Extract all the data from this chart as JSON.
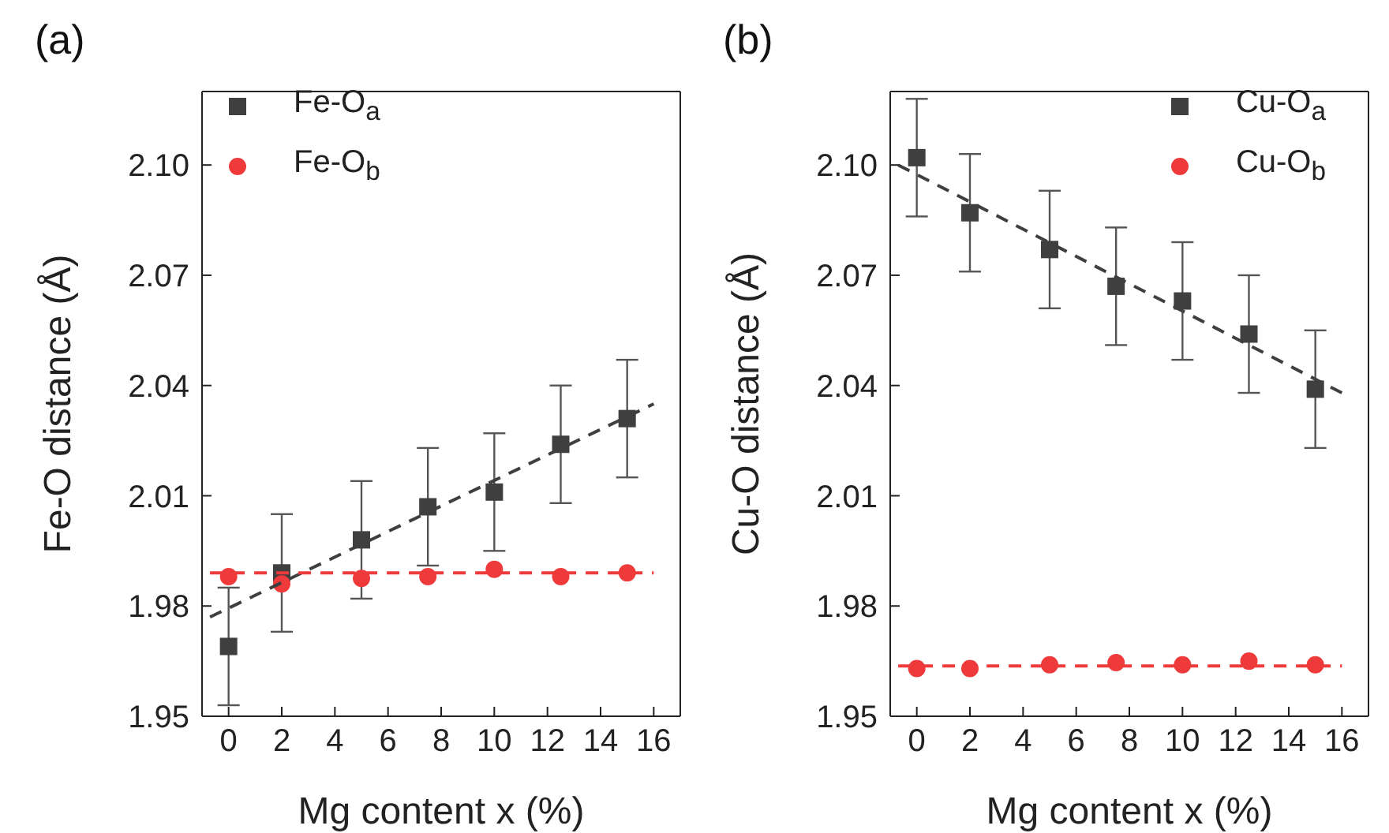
{
  "chart_data": [
    {
      "type": "scatter",
      "title": "(a)",
      "xlabel": "Mg content x (%)",
      "ylabel": "Fe-O distance (Å)",
      "xlim": [
        -1,
        17
      ],
      "xticks": [
        0,
        2,
        4,
        6,
        8,
        10,
        12,
        14,
        16
      ],
      "ylim": [
        1.95,
        2.12
      ],
      "yticks": [
        1.95,
        1.98,
        2.01,
        2.04,
        2.07,
        {
          "value": 2.1,
          "label": "2.10"
        }
      ],
      "grid": false,
      "legend": "top left",
      "series": [
        {
          "name": "Fe-O$_{a}$",
          "type": "scatter",
          "marker": "square",
          "color": "#3f3f3f",
          "x": [
            0,
            2,
            5,
            7.5,
            10,
            12.5,
            15
          ],
          "values": [
            1.969,
            1.989,
            1.998,
            2.007,
            2.011,
            2.024,
            2.031
          ],
          "errors": [
            0.016,
            0.016,
            0.016,
            0.016,
            0.016,
            0.016,
            0.016
          ]
        },
        {
          "name": "Fe-O$_{b}$",
          "type": "scatter",
          "marker": "circle",
          "color": "#ee3a3a",
          "x": [
            0,
            2,
            5,
            7.5,
            10,
            12.5,
            15
          ],
          "values": [
            1.988,
            1.986,
            1.9875,
            1.988,
            1.99,
            1.988,
            1.989
          ]
        },
        {
          "type": "line",
          "marker": "none",
          "line_style": "dashed",
          "color": "#3f3f3f",
          "x": [
            -0.7,
            16
          ],
          "values": [
            1.977,
            2.035
          ]
        },
        {
          "type": "line",
          "marker": "none",
          "line_style": "dashed",
          "color": "#ee3a3a",
          "x": [
            -0.7,
            16
          ],
          "values": [
            1.989,
            1.989
          ]
        }
      ]
    },
    {
      "type": "scatter",
      "title": "(b)",
      "xlabel": "Mg content x (%)",
      "ylabel": "Cu-O distance (Å)",
      "xlim": [
        -1,
        17
      ],
      "xticks": [
        0,
        2,
        4,
        6,
        8,
        10,
        12,
        14,
        16
      ],
      "ylim": [
        1.95,
        2.12
      ],
      "yticks": [
        1.95,
        1.98,
        2.01,
        2.04,
        2.07,
        {
          "value": 2.1,
          "label": "2.10"
        }
      ],
      "grid": false,
      "legend": "top right",
      "series": [
        {
          "name": "Cu-O$_{a}$",
          "type": "scatter",
          "marker": "square",
          "color": "#3f3f3f",
          "x": [
            0,
            2,
            5,
            7.5,
            10,
            12.5,
            15
          ],
          "values": [
            2.102,
            2.087,
            2.077,
            2.067,
            2.063,
            2.054,
            2.039
          ],
          "errors": [
            0.016,
            0.016,
            0.016,
            0.016,
            0.016,
            0.016,
            0.016
          ]
        },
        {
          "name": "Cu-O$_{b}$",
          "type": "scatter",
          "marker": "circle",
          "color": "#ee3a3a",
          "x": [
            0,
            2,
            5,
            7.5,
            10,
            12.5,
            15
          ],
          "values": [
            1.963,
            1.963,
            1.964,
            1.9646,
            1.964,
            1.965,
            1.964
          ]
        },
        {
          "type": "line",
          "marker": "none",
          "line_style": "dashed",
          "color": "#3f3f3f",
          "x": [
            -0.7,
            16
          ],
          "values": [
            2.1,
            2.038
          ]
        },
        {
          "type": "line",
          "marker": "none",
          "line_style": "dashed",
          "color": "#ee3a3a",
          "x": [
            -0.7,
            16
          ],
          "values": [
            1.9637,
            1.9637
          ]
        }
      ]
    }
  ]
}
